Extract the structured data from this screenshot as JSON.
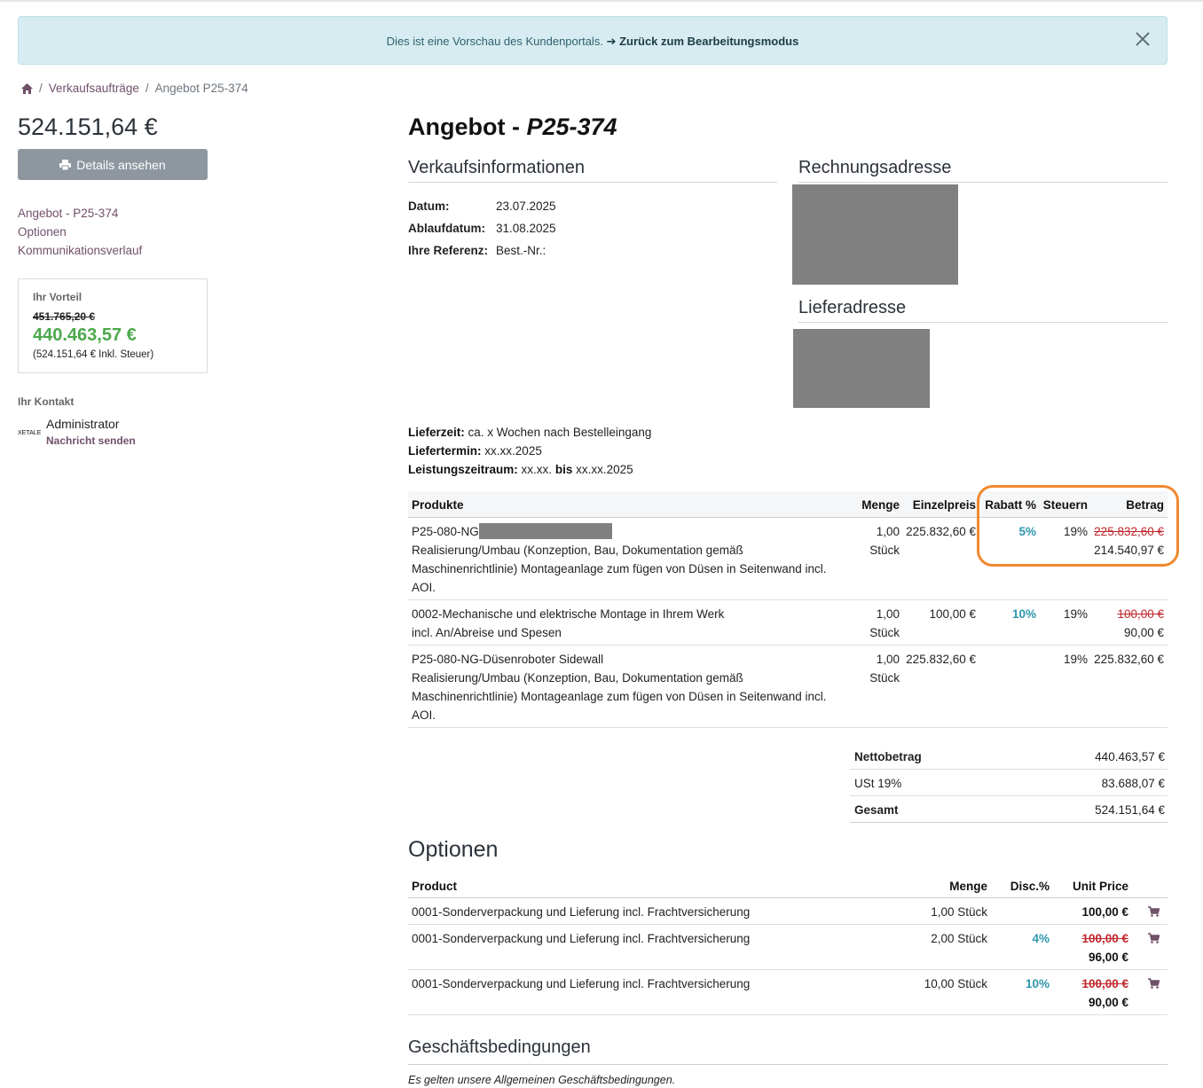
{
  "banner": {
    "text": "Dies ist eine Vorschau des Kundenportals.",
    "link": "➔ Zurück zum Bearbeitungsmodus"
  },
  "breadcrumb": {
    "sep": "/",
    "items": [
      "Verkaufsaufträge",
      "Angebot P25-374"
    ]
  },
  "sidebar": {
    "total": "524.151,64 €",
    "details_button": "Details ansehen",
    "nav": [
      "Angebot - P25-374",
      "Optionen",
      "Kommunikationsverlauf"
    ],
    "advantage": {
      "title": "Ihr Vorteil",
      "old_price": "451.765,20 €",
      "new_price": "440.463,57 €",
      "note": "(524.151,64 € Inkl. Steuer)"
    },
    "contact": {
      "title": "Ihr Kontakt",
      "logo_text": "XETALE",
      "name": "Administrator",
      "message": "Nachricht senden"
    }
  },
  "main": {
    "title_prefix": "Angebot - ",
    "title_ref": "P25-374",
    "sales_info_title": "Verkaufsinformationen",
    "info": [
      {
        "label": "Datum:",
        "value": "23.07.2025"
      },
      {
        "label": "Ablaufdatum:",
        "value": "31.08.2025"
      },
      {
        "label": "Ihre Referenz:",
        "value": "Best.-Nr.:"
      }
    ],
    "billing_title": "Rechnungsadresse",
    "shipping_title": "Lieferadresse",
    "delivery": {
      "lieferzeit_label": "Lieferzeit:",
      "lieferzeit_value": "ca. x Wochen nach Bestelleingang",
      "liefertermin_label": "Liefertermin:",
      "liefertermin_value": "xx.xx.2025",
      "zeitraum_label": "Leistungszeitraum:",
      "zeitraum_from": "xx.xx.",
      "zeitraum_bis": "bis",
      "zeitraum_to": "xx.xx.2025"
    }
  },
  "products": {
    "headers": {
      "name": "Produkte",
      "qty": "Menge",
      "price": "Einzelpreis",
      "disc": "Rabatt %",
      "tax": "Steuern",
      "amount": "Betrag"
    },
    "rows": [
      {
        "code": "P25-080-NG",
        "lines": [
          "Realisierung/Umbau (Konzeption, Bau, Dokumentation gemäß",
          "Maschinenrichtlinie) Montageanlage zum fügen von Düsen in Seitenwand incl.",
          "AOI."
        ],
        "qty": "1,00",
        "unit": "Stück",
        "price": "225.832,60 €",
        "disc": "5%",
        "tax": "19%",
        "amount_old": "225.832,60 €",
        "amount": "214.540,97 €"
      },
      {
        "lines": [
          "0002-Mechanische und elektrische Montage in Ihrem Werk",
          "incl. An/Abreise und Spesen"
        ],
        "qty": "1,00",
        "unit": "Stück",
        "price": "100,00 €",
        "disc": "10%",
        "tax": "19%",
        "amount_old": "100,00 €",
        "amount": "90,00 €"
      },
      {
        "lines": [
          "P25-080-NG-Düsenroboter Sidewall",
          "Realisierung/Umbau (Konzeption, Bau, Dokumentation gemäß",
          "Maschinenrichtlinie) Montageanlage zum fügen von Düsen in Seitenwand incl.",
          "AOI."
        ],
        "qty": "1,00",
        "unit": "Stück",
        "price": "225.832,60 €",
        "tax": "19%",
        "amount": "225.832,60 €"
      }
    ]
  },
  "totals": [
    {
      "label": "Nettobetrag",
      "value": "440.463,57 €"
    },
    {
      "label": "USt 19%",
      "value": "83.688,07 €"
    },
    {
      "label": "Gesamt",
      "value": "524.151,64 €"
    }
  ],
  "options": {
    "title": "Optionen",
    "headers": {
      "name": "Product",
      "qty": "Menge",
      "disc": "Disc.%",
      "price": "Unit Price"
    },
    "rows": [
      {
        "name": "0001-Sonderverpackung und Lieferung incl. Frachtversicherung",
        "qty": "1,00 Stück",
        "price": "100,00 €"
      },
      {
        "name": "0001-Sonderverpackung und Lieferung incl. Frachtversicherung",
        "qty": "2,00 Stück",
        "disc": "4%",
        "price_old": "100,00 €",
        "price": "96,00 €"
      },
      {
        "name": "0001-Sonderverpackung und Lieferung incl. Frachtversicherung",
        "qty": "10,00 Stück",
        "disc": "10%",
        "price_old": "100,00 €",
        "price": "90,00 €"
      }
    ]
  },
  "terms": {
    "title": "Geschäftsbedingungen",
    "text": "Es gelten unsere Allgemeinen Geschäftsbedingungen."
  },
  "colors": {
    "accent": "#71506a",
    "discount": "#2e97ac",
    "strike": "#c0272d",
    "saving": "#4ca84c",
    "highlight": "#f0892e"
  }
}
